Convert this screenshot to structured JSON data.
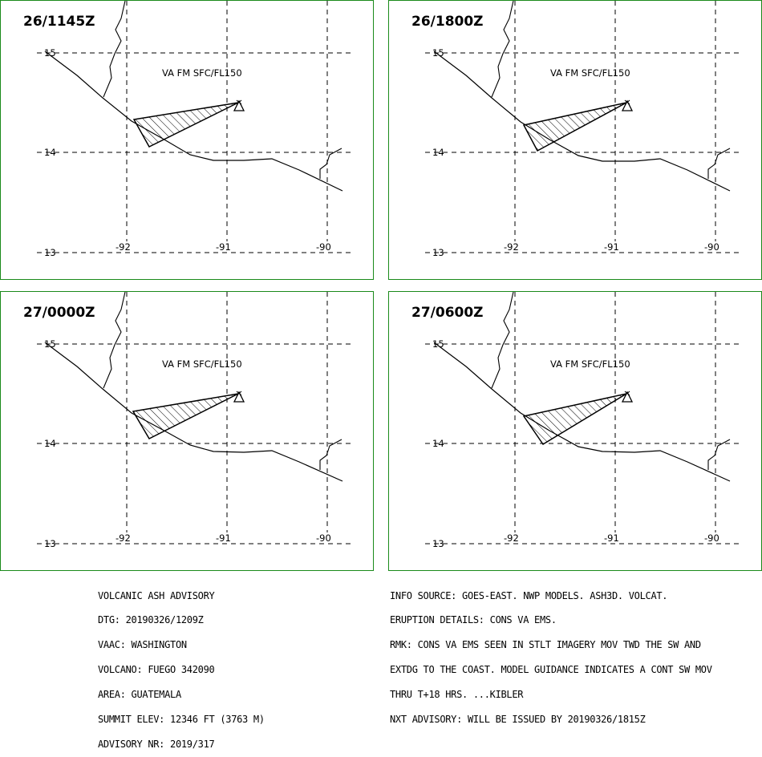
{
  "colors": {
    "panel_border": "#1a8a1a",
    "gridline": "#000000",
    "coastline": "#000000",
    "ash_outline": "#000000"
  },
  "panels": [
    {
      "time": "26/1145Z",
      "va_text": "VA FM SFC/FL150"
    },
    {
      "time": "26/1800Z",
      "va_text": "VA FM SFC/FL150"
    },
    {
      "time": "27/0000Z",
      "va_text": "VA FM SFC/FL150"
    },
    {
      "time": "27/0600Z",
      "va_text": "VA FM SFC/FL150"
    }
  ],
  "lat_labels": [
    "15",
    "14",
    "13"
  ],
  "lon_labels": [
    "-92",
    "-91",
    "-90"
  ],
  "volcano_icon": "triangle-volcano-icon",
  "left_text": [
    "VOLCANIC ASH ADVISORY",
    "DTG: 20190326/1209Z",
    "VAAC: WASHINGTON",
    "VOLCANO: FUEGO 342090",
    "AREA: GUATEMALA",
    "SUMMIT ELEV: 12346 FT (3763 M)",
    "ADVISORY NR: 2019/317"
  ],
  "right_text": [
    "INFO SOURCE: GOES-EAST. NWP MODELS. ASH3D. VOLCAT.",
    "ERUPTION DETAILS: CONS VA EMS.",
    "RMK: CONS VA EMS SEEN IN STLT IMAGERY MOV TWD THE SW AND",
    "EXTDG TO THE COAST. MODEL GUIDANCE INDICATES A CONT SW MOV",
    "THRU T+18 HRS. ...KIBLER",
    "NXT ADVISORY: WILL BE ISSUED BY 20190326/1815Z"
  ]
}
